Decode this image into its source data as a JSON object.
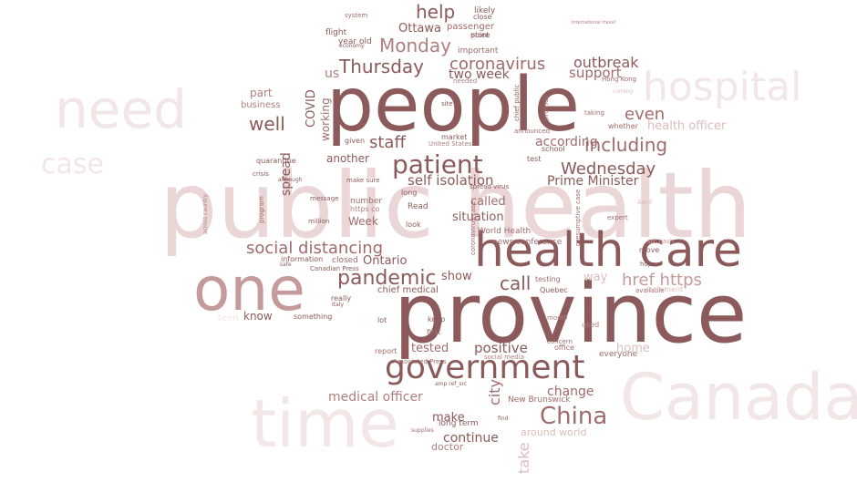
{
  "word_cloud": {
    "palette": [
      "#8c5a5a",
      "#a06b6b",
      "#b07f7f",
      "#c49a9a",
      "#dcbcbc",
      "#ead6d6",
      "#f2e6e6"
    ],
    "words": [
      {
        "text": "public health",
        "weight": 100,
        "color": "#ead6d6"
      },
      {
        "text": "province",
        "weight": 92,
        "color": "#8c5a5a"
      },
      {
        "text": "people",
        "weight": 88,
        "color": "#8c5a5a"
      },
      {
        "text": "Canada",
        "weight": 80,
        "color": "#f2e6e6"
      },
      {
        "text": "time",
        "weight": 78,
        "color": "#f2e6e6"
      },
      {
        "text": "one",
        "weight": 70,
        "color": "#c49a9a"
      },
      {
        "text": "health care",
        "weight": 62,
        "color": "#8c5a5a"
      },
      {
        "text": "need",
        "weight": 60,
        "color": "#f2e6e6"
      },
      {
        "text": "hospital",
        "weight": 52,
        "color": "#f2e6e6"
      },
      {
        "text": "government",
        "weight": 40,
        "color": "#8c5a5a"
      },
      {
        "text": "patient",
        "weight": 34,
        "color": "#8c5a5a"
      },
      {
        "text": "China",
        "weight": 30,
        "color": "#a06b6b"
      },
      {
        "text": "case",
        "weight": 28,
        "color": "#f2e6e6"
      },
      {
        "text": "pandemic",
        "weight": 26,
        "color": "#8c5a5a"
      },
      {
        "text": "including",
        "weight": 24,
        "color": "#a06b6b"
      },
      {
        "text": "Thursday",
        "weight": 24,
        "color": "#8c5a5a"
      },
      {
        "text": "Wednesday",
        "weight": 22,
        "color": "#8c5a5a"
      },
      {
        "text": "social distancing",
        "weight": 22,
        "color": "#a06b6b"
      },
      {
        "text": "Monday",
        "weight": 22,
        "color": "#b07f7f"
      },
      {
        "text": "coronavirus",
        "weight": 22,
        "color": "#a06b6b"
      },
      {
        "text": "well",
        "weight": 22,
        "color": "#8c5a5a"
      },
      {
        "text": "staff",
        "weight": 20,
        "color": "#8c5a5a"
      },
      {
        "text": "call",
        "weight": 20,
        "color": "#8c5a5a"
      },
      {
        "text": "href https",
        "weight": 20,
        "color": "#c49a9a"
      },
      {
        "text": "help",
        "weight": 20,
        "color": "#8c5a5a"
      },
      {
        "text": "even",
        "weight": 20,
        "color": "#a06b6b"
      },
      {
        "text": "outbreak",
        "weight": 18,
        "color": "#8c5a5a"
      },
      {
        "text": "self isolation",
        "weight": 16,
        "color": "#8c5a5a"
      },
      {
        "text": "Prime Minister",
        "weight": 16,
        "color": "#8c5a5a"
      },
      {
        "text": "according",
        "weight": 16,
        "color": "#a06b6b"
      },
      {
        "text": "medical officer",
        "weight": 16,
        "color": "#b07f7f"
      },
      {
        "text": "change",
        "weight": 16,
        "color": "#a06b6b"
      },
      {
        "text": "positive",
        "weight": 16,
        "color": "#8c5a5a"
      },
      {
        "text": "continue",
        "weight": 16,
        "color": "#8c5a5a"
      },
      {
        "text": "tested",
        "weight": 14,
        "color": "#a06b6b"
      },
      {
        "text": "support",
        "weight": 16,
        "color": "#a06b6b"
      },
      {
        "text": "two week",
        "weight": 16,
        "color": "#8c5a5a"
      },
      {
        "text": "spread",
        "weight": 16,
        "color": "#8c5a5a"
      },
      {
        "text": "city",
        "weight": 18,
        "color": "#a06b6b"
      },
      {
        "text": "situation",
        "weight": 14,
        "color": "#8c5a5a"
      },
      {
        "text": "called",
        "weight": 14,
        "color": "#a06b6b"
      },
      {
        "text": "Ottawa",
        "weight": 14,
        "color": "#8c5a5a"
      },
      {
        "text": "health officer",
        "weight": 14,
        "color": "#dcbcbc"
      },
      {
        "text": "home",
        "weight": 14,
        "color": "#dcbcbc"
      },
      {
        "text": "make",
        "weight": 14,
        "color": "#8c5a5a"
      },
      {
        "text": "way",
        "weight": 14,
        "color": "#dcbcbc"
      },
      {
        "text": "know",
        "weight": 12,
        "color": "#8c5a5a"
      },
      {
        "text": "Ontario",
        "weight": 12,
        "color": "#8c5a5a"
      },
      {
        "text": "show",
        "weight": 12,
        "color": "#8c5a5a"
      },
      {
        "text": "another",
        "weight": 12,
        "color": "#8c5a5a"
      },
      {
        "text": "part",
        "weight": 12,
        "color": "#b07f7f"
      },
      {
        "text": "us",
        "weight": 14,
        "color": "#b07f7f"
      },
      {
        "text": "COVID",
        "weight": 14,
        "color": "#8c5a5a"
      },
      {
        "text": "working",
        "weight": 12,
        "color": "#a06b6b"
      },
      {
        "text": "Week",
        "weight": 12,
        "color": "#a06b6b"
      },
      {
        "text": "take",
        "weight": 16,
        "color": "#dcbcbc"
      },
      {
        "text": "chief medical",
        "weight": 10,
        "color": "#8c5a5a"
      },
      {
        "text": "around world",
        "weight": 11,
        "color": "#dcbcbc"
      },
      {
        "text": "doctor",
        "weight": 11,
        "color": "#b07f7f"
      },
      {
        "text": "long term",
        "weight": 9,
        "color": "#8c5a5a"
      },
      {
        "text": "New Brunswick",
        "weight": 9,
        "color": "#a06b6b"
      },
      {
        "text": "passenger",
        "weight": 10,
        "color": "#a06b6b"
      },
      {
        "text": "important",
        "weight": 9,
        "color": "#a06b6b"
      },
      {
        "text": "flight",
        "weight": 9,
        "color": "#8c5a5a"
      },
      {
        "text": "year old",
        "weight": 9,
        "color": "#8c5a5a"
      },
      {
        "text": "quarantine",
        "weight": 8,
        "color": "#8c5a5a"
      },
      {
        "text": "business",
        "weight": 10,
        "color": "#b07f7f"
      },
      {
        "text": "likely",
        "weight": 9,
        "color": "#8c5a5a"
      },
      {
        "text": "World Health",
        "weight": 9,
        "color": "#a06b6b"
      },
      {
        "text": "news conference",
        "weight": 9,
        "color": "#a06b6b"
      },
      {
        "text": "Read",
        "weight": 9,
        "color": "#8c5a5a"
      },
      {
        "text": "look",
        "weight": 8,
        "color": "#8c5a5a"
      },
      {
        "text": "number",
        "weight": 9,
        "color": "#a06b6b"
      },
      {
        "text": "https co",
        "weight": 8,
        "color": "#b07f7f"
      },
      {
        "text": "million",
        "weight": 7,
        "color": "#8c5a5a"
      },
      {
        "text": "message",
        "weight": 7,
        "color": "#8c5a5a"
      },
      {
        "text": "information",
        "weight": 8,
        "color": "#8c5a5a"
      },
      {
        "text": "closed",
        "weight": 9,
        "color": "#a06b6b"
      },
      {
        "text": "Canadian Press",
        "weight": 7,
        "color": "#8c5a5a"
      },
      {
        "text": "really",
        "weight": 8,
        "color": "#8c5a5a"
      },
      {
        "text": "something",
        "weight": 8,
        "color": "#8c5a5a"
      },
      {
        "text": "Quebec",
        "weight": 8,
        "color": "#8c5a5a"
      },
      {
        "text": "testing",
        "weight": 8,
        "color": "#a06b6b"
      },
      {
        "text": "report",
        "weight": 8,
        "color": "#a06b6b"
      },
      {
        "text": "keep",
        "weight": 8,
        "color": "#8c5a5a"
      },
      {
        "text": "first",
        "weight": 8,
        "color": "#a06b6b"
      },
      {
        "text": "lot",
        "weight": 8,
        "color": "#8c5a5a"
      },
      {
        "text": "office",
        "weight": 8,
        "color": "#a06b6b"
      },
      {
        "text": "everyone",
        "weight": 9,
        "color": "#a06b6b"
      },
      {
        "text": "used",
        "weight": 8,
        "color": "#b07f7f"
      },
      {
        "text": "hope",
        "weight": 7,
        "color": "#8c5a5a"
      },
      {
        "text": "move",
        "weight": 8,
        "color": "#8c5a5a"
      },
      {
        "text": "available",
        "weight": 7,
        "color": "#a06b6b"
      },
      {
        "text": "statement",
        "weight": 8,
        "color": "#dcbcbc"
      },
      {
        "text": "whether",
        "weight": 8,
        "color": "#a06b6b"
      },
      {
        "text": "school",
        "weight": 8,
        "color": "#8c5a5a"
      },
      {
        "text": "test",
        "weight": 8,
        "color": "#8c5a5a"
      },
      {
        "text": "market",
        "weight": 8,
        "color": "#8c5a5a"
      },
      {
        "text": "given",
        "weight": 8,
        "color": "#8c5a5a"
      },
      {
        "text": "long",
        "weight": 8,
        "color": "#8c5a5a"
      },
      {
        "text": "make sure",
        "weight": 7,
        "color": "#8c5a5a"
      },
      {
        "text": "spread virus",
        "weight": 7,
        "color": "#8c5a5a"
      },
      {
        "text": "announced",
        "weight": 7,
        "color": "#a06b6b"
      },
      {
        "text": "provide",
        "weight": 8,
        "color": "#a06b6b"
      },
      {
        "text": "point",
        "weight": 8,
        "color": "#8c5a5a"
      },
      {
        "text": "store",
        "weight": 8,
        "color": "#8c5a5a"
      },
      {
        "text": "close",
        "weight": 8,
        "color": "#8c5a5a"
      },
      {
        "text": "system",
        "weight": 7,
        "color": "#a06b6b"
      },
      {
        "text": "economy",
        "weight": 6,
        "color": "#8c5a5a"
      },
      {
        "text": "site",
        "weight": 7,
        "color": "#8c5a5a"
      },
      {
        "text": "United States",
        "weight": 7,
        "color": "#b07f7f"
      },
      {
        "text": "crisis",
        "weight": 7,
        "color": "#8c5a5a"
      },
      {
        "text": "although",
        "weight": 6,
        "color": "#8c5a5a"
      },
      {
        "text": "program",
        "weight": 7,
        "color": "#a06b6b"
      },
      {
        "text": "across country",
        "weight": 6,
        "color": "#b07f7f"
      },
      {
        "text": "presumptive case",
        "weight": 7,
        "color": "#a06b6b"
      },
      {
        "text": "Associated Press",
        "weight": 7,
        "color": "#a06b6b"
      },
      {
        "text": "src hash",
        "weight": 7,
        "color": "#c49a9a"
      },
      {
        "text": "expert",
        "weight": 7,
        "color": "#a06b6b"
      },
      {
        "text": "April",
        "weight": 7,
        "color": "#dcbcbc"
      },
      {
        "text": "chief public",
        "weight": 7,
        "color": "#8c5a5a"
      },
      {
        "text": "coronavirus case",
        "weight": 7,
        "color": "#a06b6b"
      },
      {
        "text": "Hong Kong",
        "weight": 7,
        "color": "#a06b6b"
      },
      {
        "text": "taking",
        "weight": 7,
        "color": "#a06b6b"
      },
      {
        "text": "month",
        "weight": 7,
        "color": "#b07f7f"
      },
      {
        "text": "concern",
        "weight": 7,
        "color": "#a06b6b"
      },
      {
        "text": "needed",
        "weight": 7,
        "color": "#b07f7f"
      },
      {
        "text": "social media",
        "weight": 7,
        "color": "#b07f7f"
      },
      {
        "text": "amp ref_src",
        "weight": 6,
        "color": "#8c5a5a"
      },
      {
        "text": "supplies",
        "weight": 6,
        "color": "#a06b6b"
      },
      {
        "text": "find",
        "weight": 6,
        "color": "#8c5a5a"
      },
      {
        "text": "Italy",
        "weight": 6,
        "color": "#8c5a5a"
      },
      {
        "text": "safe",
        "weight": 6,
        "color": "#8c5a5a"
      },
      {
        "text": "international travel",
        "weight": 5,
        "color": "#b07f7f"
      },
      {
        "text": "coming",
        "weight": 6,
        "color": "#dcbcbc"
      },
      {
        "text": "seen",
        "weight": 10,
        "color": "#f2e6e6"
      }
    ]
  }
}
